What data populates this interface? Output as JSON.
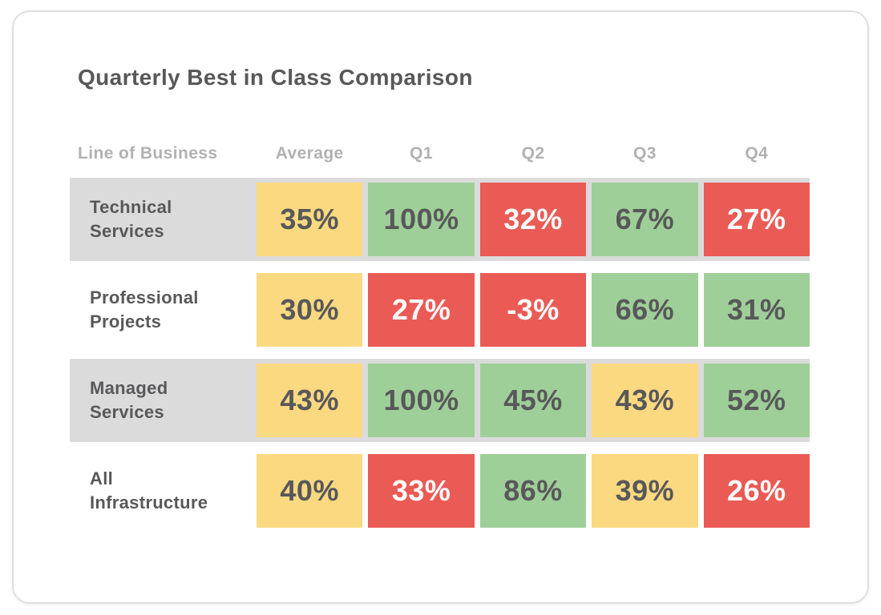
{
  "card": {
    "title": "Quarterly Best in Class Comparison"
  },
  "chart_data": {
    "type": "table",
    "title": "Quarterly Best in Class Comparison",
    "columns": [
      "Line of Business",
      "Average",
      "Q1",
      "Q2",
      "Q3",
      "Q4"
    ],
    "rows": [
      {
        "label": "Technical\nServices",
        "cells": [
          {
            "text": "35%",
            "value": 35,
            "color": "yellow"
          },
          {
            "text": "100%",
            "value": 100,
            "color": "green"
          },
          {
            "text": "32%",
            "value": 32,
            "color": "red"
          },
          {
            "text": "67%",
            "value": 67,
            "color": "green"
          },
          {
            "text": "27%",
            "value": 27,
            "color": "red"
          }
        ]
      },
      {
        "label": "Professional\nProjects",
        "cells": [
          {
            "text": "30%",
            "value": 30,
            "color": "yellow"
          },
          {
            "text": "27%",
            "value": 27,
            "color": "red"
          },
          {
            "text": "-3%",
            "value": -3,
            "color": "red"
          },
          {
            "text": "66%",
            "value": 66,
            "color": "green"
          },
          {
            "text": "31%",
            "value": 31,
            "color": "green"
          }
        ]
      },
      {
        "label": "Managed\nServices",
        "cells": [
          {
            "text": "43%",
            "value": 43,
            "color": "yellow"
          },
          {
            "text": "100%",
            "value": 100,
            "color": "green"
          },
          {
            "text": "45%",
            "value": 45,
            "color": "green"
          },
          {
            "text": "43%",
            "value": 43,
            "color": "yellow"
          },
          {
            "text": "52%",
            "value": 52,
            "color": "green"
          }
        ]
      },
      {
        "label": "All\nInfrastructure",
        "cells": [
          {
            "text": "40%",
            "value": 40,
            "color": "yellow"
          },
          {
            "text": "33%",
            "value": 33,
            "color": "red"
          },
          {
            "text": "86%",
            "value": 86,
            "color": "green"
          },
          {
            "text": "39%",
            "value": 39,
            "color": "yellow"
          },
          {
            "text": "26%",
            "value": 26,
            "color": "red"
          }
        ]
      }
    ],
    "palette": {
      "yellow": "#FBD981",
      "green": "#9FCF98",
      "red": "#EA5B55",
      "row_stripe": "#DBDBDB",
      "text_dark": "#58585A",
      "text_on_red": "#FFFFFF",
      "header_text": "#B1B1B1"
    },
    "layout": {
      "striped_rows": [
        0,
        2
      ],
      "grid": "off",
      "legend": "none"
    }
  }
}
